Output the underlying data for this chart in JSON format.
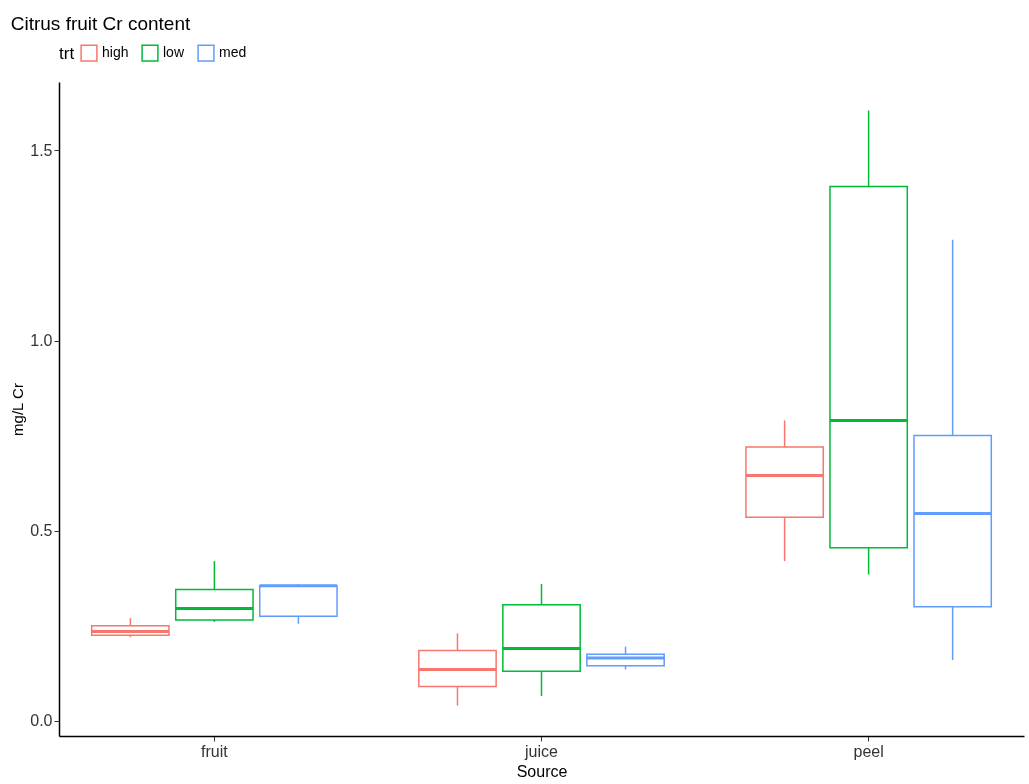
{
  "chart_data": {
    "type": "box",
    "title": "Citrus fruit Cr content",
    "xlabel": "Source",
    "ylabel": "mg/L Cr",
    "legend_title": "trt",
    "legend": "top",
    "grid": false,
    "categories": [
      "fruit",
      "juice",
      "peel"
    ],
    "ylim": [
      -0.04,
      1.68
    ],
    "yticks": [
      {
        "value": 0,
        "label": "0.0"
      },
      {
        "value": 0.5,
        "label": "0.5"
      },
      {
        "value": 1,
        "label": "1.0"
      },
      {
        "value": 1.5,
        "label": "1.5"
      }
    ],
    "series": [
      {
        "name": "high",
        "color": "#f8766d",
        "boxes": [
          {
            "low": 0.22,
            "q1": 0.225,
            "median": 0.235,
            "q3": 0.25,
            "high": 0.27
          },
          {
            "low": 0.04,
            "q1": 0.09,
            "median": 0.135,
            "q3": 0.185,
            "high": 0.23
          },
          {
            "low": 0.42,
            "q1": 0.535,
            "median": 0.645,
            "q3": 0.72,
            "high": 0.79
          }
        ]
      },
      {
        "name": "low",
        "color": "#00ba38",
        "boxes": [
          {
            "low": 0.26,
            "q1": 0.265,
            "median": 0.295,
            "q3": 0.345,
            "high": 0.42
          },
          {
            "low": 0.065,
            "q1": 0.13,
            "median": 0.19,
            "q3": 0.305,
            "high": 0.36
          },
          {
            "low": 0.385,
            "q1": 0.455,
            "median": 0.79,
            "q3": 1.405,
            "high": 1.605
          }
        ]
      },
      {
        "name": "med",
        "color": "#619cff",
        "boxes": [
          {
            "low": 0.255,
            "q1": 0.275,
            "median": 0.355,
            "q3": 0.355,
            "high": 0.36
          },
          {
            "low": 0.135,
            "q1": 0.145,
            "median": 0.165,
            "q3": 0.175,
            "high": 0.195
          },
          {
            "low": 0.16,
            "q1": 0.3,
            "median": 0.545,
            "q3": 0.75,
            "high": 1.265
          }
        ]
      }
    ]
  }
}
